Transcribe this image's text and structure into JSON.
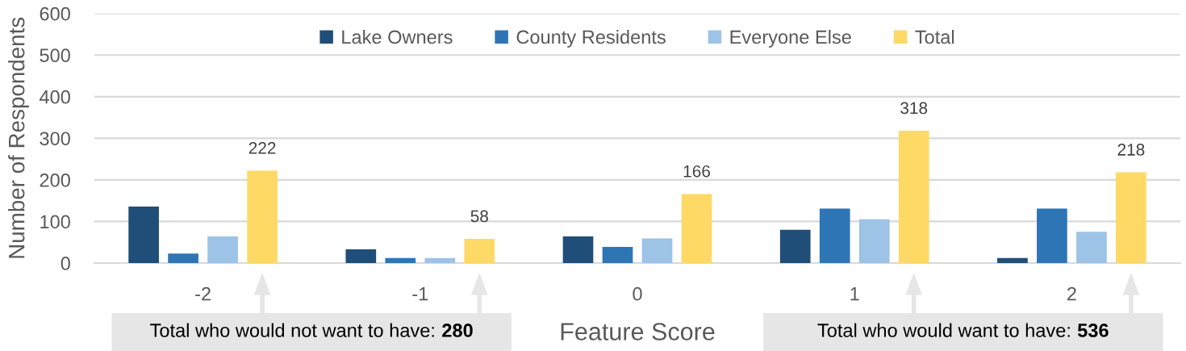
{
  "chart_data": {
    "type": "bar",
    "xlabel": "Feature Score",
    "ylabel": "Number of Respondents",
    "categories": [
      "-2",
      "-1",
      "0",
      "1",
      "2"
    ],
    "series": [
      {
        "name": "Lake Owners",
        "color": "#1f4e79",
        "values": [
          136,
          33,
          64,
          80,
          12
        ]
      },
      {
        "name": "County Residents",
        "color": "#2e75b6",
        "values": [
          23,
          12,
          39,
          131,
          131
        ]
      },
      {
        "name": "Everyone Else",
        "color": "#9dc3e6",
        "values": [
          64,
          12,
          59,
          105,
          75
        ]
      },
      {
        "name": "Total",
        "color": "#ffd966",
        "values": [
          222,
          58,
          166,
          318,
          218
        ],
        "value_labels": [
          "222",
          "58",
          "166",
          "318",
          "218"
        ]
      }
    ],
    "ylim": [
      0,
      600
    ],
    "yticks": [
      0,
      100,
      200,
      300,
      400,
      500,
      600
    ],
    "grid": "y",
    "legend": "top",
    "annotations": [
      "Total who would not want to have: 280",
      "Total who would want to have: 536"
    ]
  }
}
